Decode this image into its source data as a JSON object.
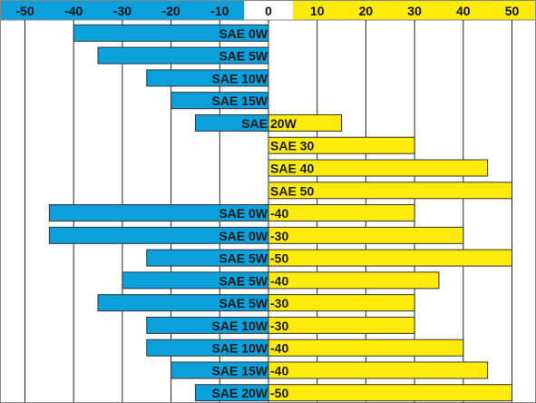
{
  "chart_data": {
    "type": "bar",
    "orientation": "horizontal",
    "subtype": "range",
    "x_axis": {
      "ticks": [
        -50,
        -40,
        -30,
        -20,
        -10,
        0,
        10,
        20,
        30,
        40,
        50
      ],
      "tick_labels": [
        "-50",
        "-40",
        "-30",
        "-20",
        "-10",
        "0",
        "10",
        "20",
        "30",
        "40",
        "50"
      ],
      "range": [
        -55,
        55
      ],
      "position": "top",
      "grid": true
    },
    "colors": {
      "negative": "#0aa0dc",
      "positive": "#ffeb0a",
      "header_negative": "#0aa0dc",
      "header_positive": "#ffeb0a",
      "header_zero": "#ffffff",
      "border": "#333333",
      "grid": "#222222",
      "frame": "#888888"
    },
    "rows": [
      {
        "name": "SAE 0W",
        "left_label": "SAE 0W",
        "right_label": "",
        "min": -40,
        "max": 0
      },
      {
        "name": "SAE 5W",
        "left_label": "SAE 5W",
        "right_label": "",
        "min": -35,
        "max": 0
      },
      {
        "name": "SAE 10W",
        "left_label": "SAE 10W",
        "right_label": "",
        "min": -25,
        "max": 0
      },
      {
        "name": "SAE 15W",
        "left_label": "SAE 15W",
        "right_label": "",
        "min": -20,
        "max": 0
      },
      {
        "name": "SAE 20W",
        "left_label": "SAE",
        "right_label": "20W",
        "min": -15,
        "max": 15
      },
      {
        "name": "SAE 30",
        "left_label": "",
        "right_label": "SAE 30",
        "min": 0,
        "max": 30
      },
      {
        "name": "SAE 40",
        "left_label": "",
        "right_label": "SAE 40",
        "min": 0,
        "max": 45
      },
      {
        "name": "SAE 50",
        "left_label": "",
        "right_label": "SAE 50",
        "min": 0,
        "max": 50
      },
      {
        "name": "SAE 0W-40",
        "left_label": "SAE 0W",
        "right_label": "-40",
        "min": -45,
        "max": 30
      },
      {
        "name": "SAE 0W-30",
        "left_label": "SAE 0W",
        "right_label": "-30",
        "min": -45,
        "max": 40
      },
      {
        "name": "SAE 5W-50",
        "left_label": "SAE 5W",
        "right_label": "-50",
        "min": -25,
        "max": 50
      },
      {
        "name": "SAE 5W-40",
        "left_label": "SAE 5W",
        "right_label": "-40",
        "min": -30,
        "max": 35
      },
      {
        "name": "SAE 5W-30",
        "left_label": "SAE 5W",
        "right_label": "-30",
        "min": -35,
        "max": 30
      },
      {
        "name": "SAE 10W-30",
        "left_label": "SAE 10W",
        "right_label": "-30",
        "min": -25,
        "max": 30
      },
      {
        "name": "SAE 10W-40",
        "left_label": "SAE 10W",
        "right_label": "-40",
        "min": -25,
        "max": 40
      },
      {
        "name": "SAE 15W-40",
        "left_label": "SAE 15W",
        "right_label": "-40",
        "min": -20,
        "max": 45
      },
      {
        "name": "SAE 20W-50",
        "left_label": "SAE 20W",
        "right_label": "-50",
        "min": -15,
        "max": 50
      }
    ]
  }
}
